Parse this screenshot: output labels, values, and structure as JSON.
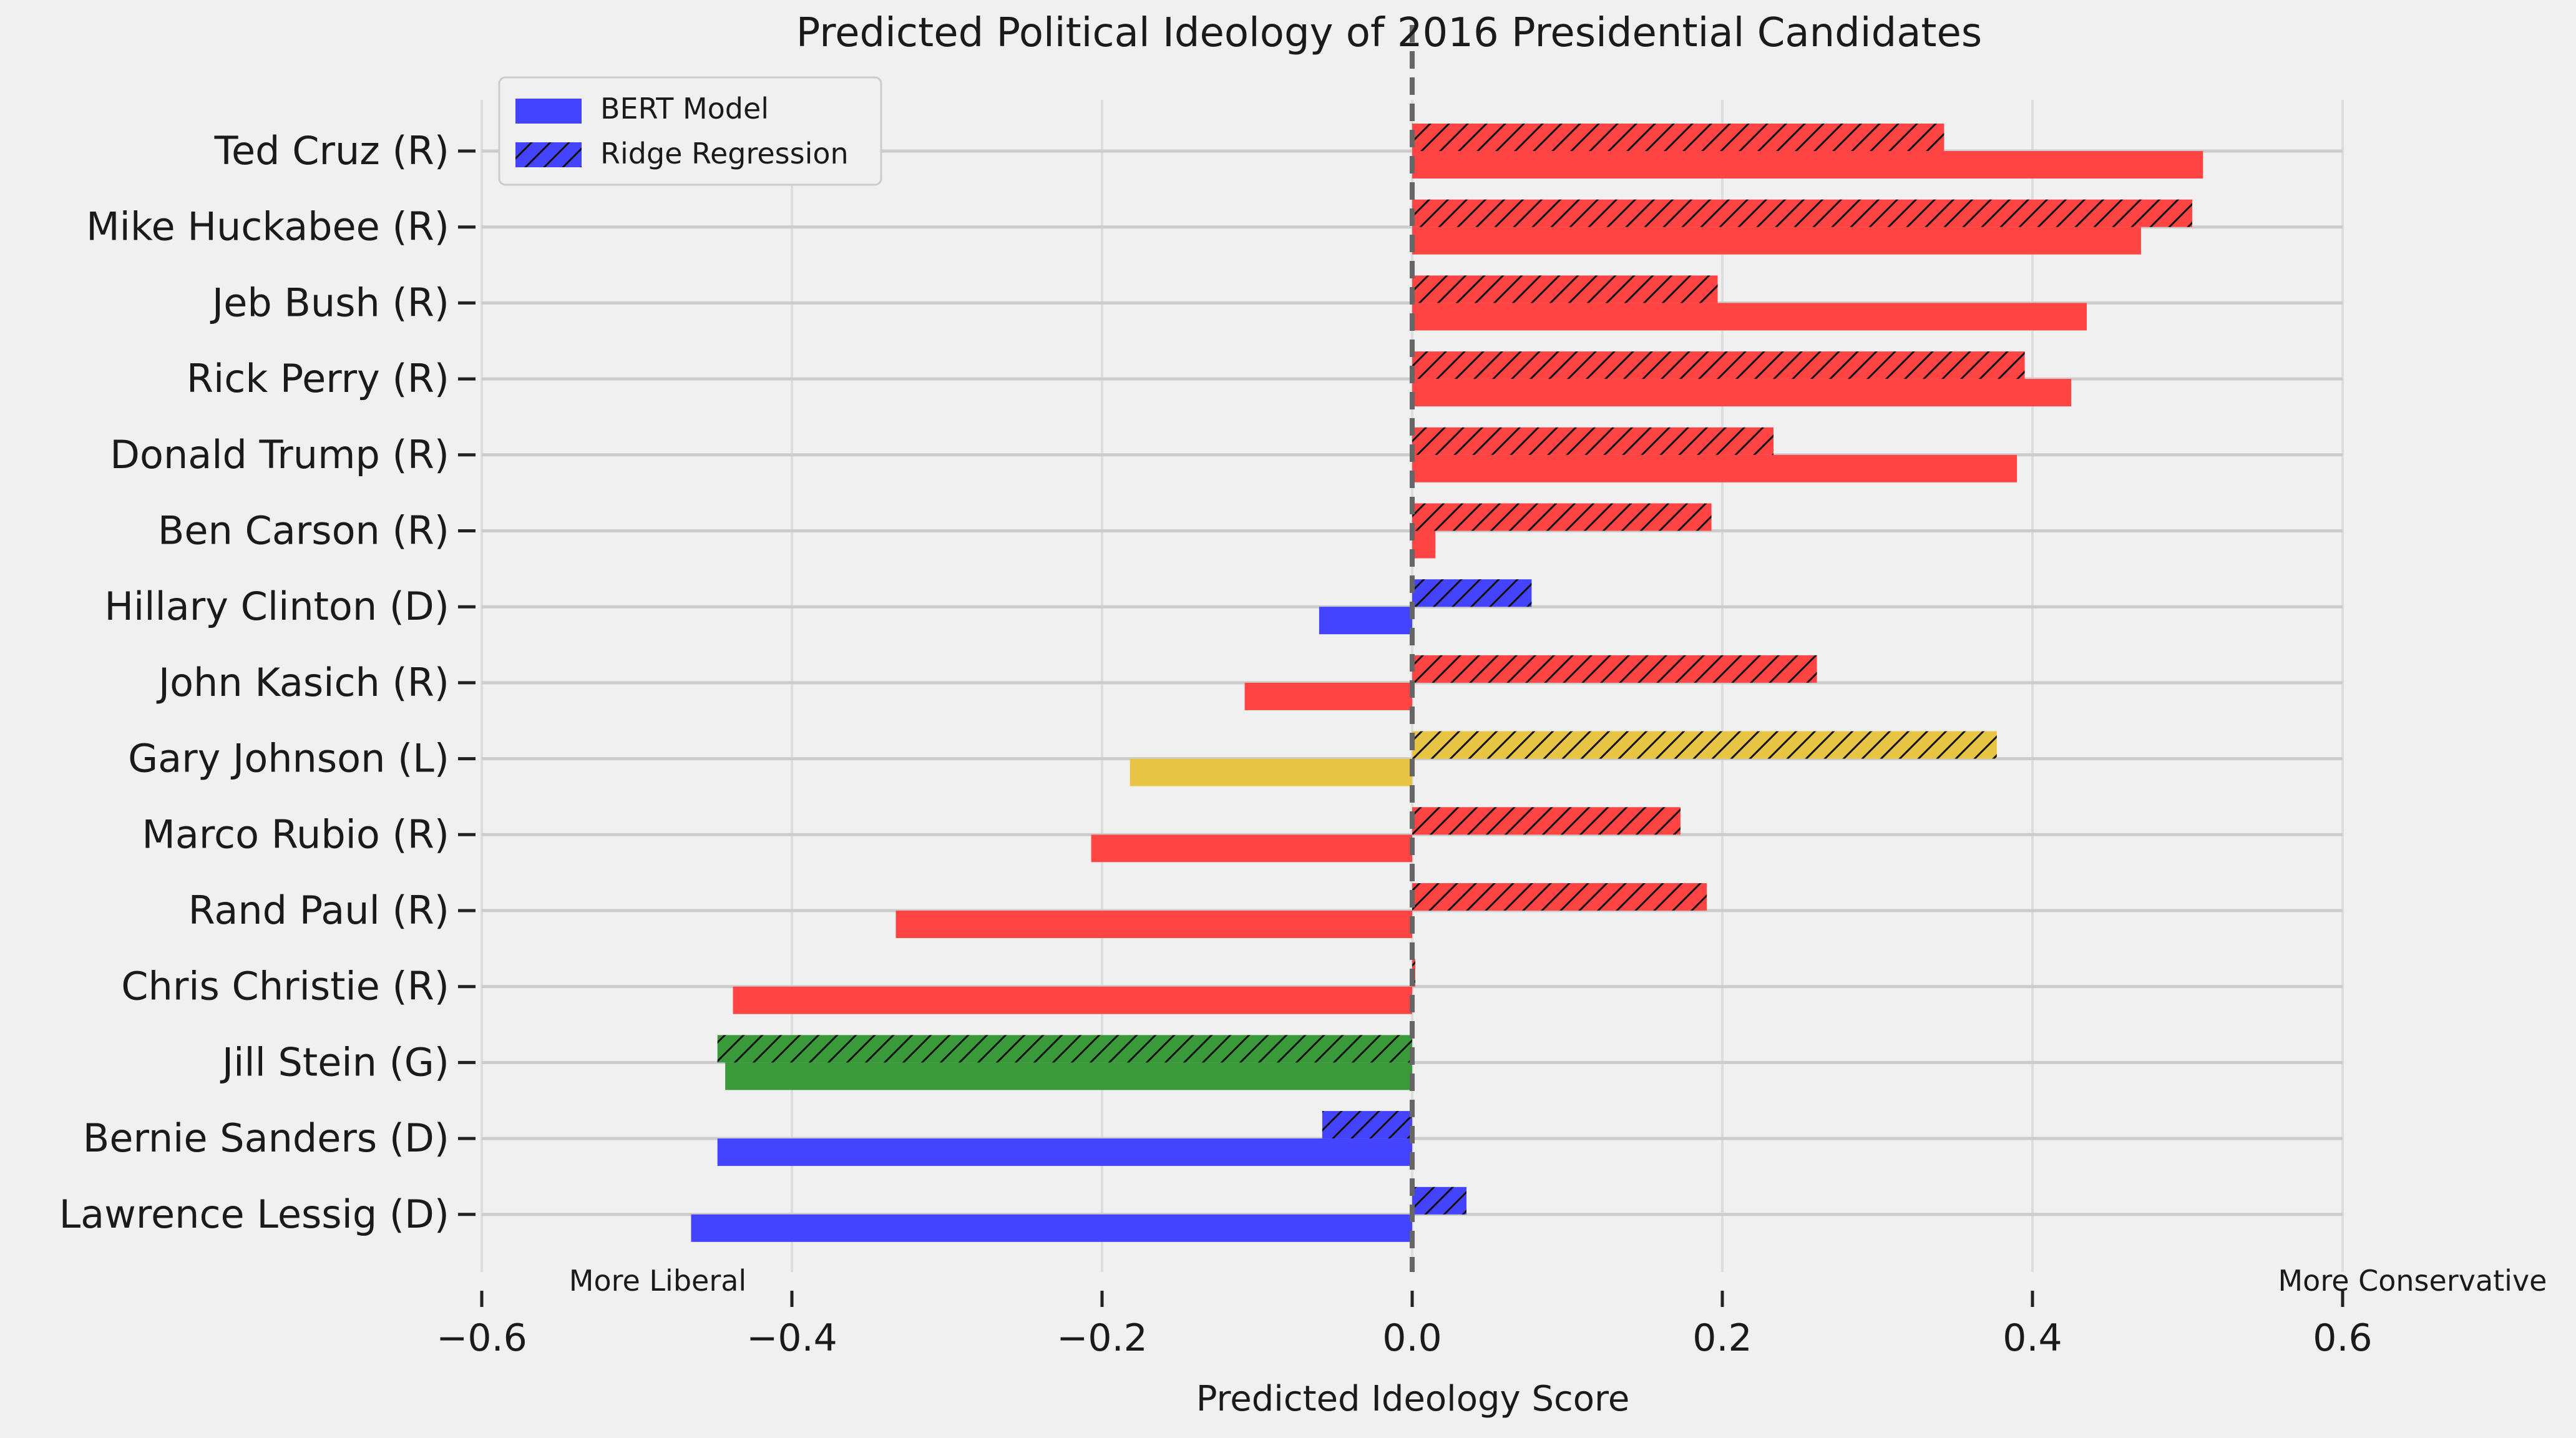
{
  "chart_data": {
    "type": "bar",
    "orientation": "horizontal",
    "title": "Predicted Political Ideology of 2016 Presidential Candidates",
    "xlabel": "Predicted Ideology Score",
    "ylabel": "",
    "xlim": [
      -0.6,
      0.6
    ],
    "xticks": [
      -0.6,
      -0.4,
      -0.2,
      0.0,
      0.2,
      0.4,
      0.6
    ],
    "xtick_labels": [
      "−0.6",
      "−0.4",
      "−0.2",
      "0.0",
      "0.2",
      "0.4",
      "0.6"
    ],
    "grid": true,
    "legend_position": "top-left",
    "annotations": {
      "left": "More Liberal",
      "right": "More Conservative"
    },
    "party_colors": {
      "R": "#ff4444",
      "D": "#4444ff",
      "L": "#e8c444",
      "G": "#3a9a3a"
    },
    "categories": [
      "Ted Cruz (R)",
      "Mike Huckabee (R)",
      "Jeb Bush (R)",
      "Rick Perry (R)",
      "Donald Trump (R)",
      "Ben Carson (R)",
      "Hillary Clinton (D)",
      "John Kasich (R)",
      "Gary Johnson (L)",
      "Marco Rubio (R)",
      "Rand Paul (R)",
      "Chris Christie (R)",
      "Jill Stein (G)",
      "Bernie Sanders (D)",
      "Lawrence Lessig (D)"
    ],
    "parties": [
      "R",
      "R",
      "R",
      "R",
      "R",
      "R",
      "D",
      "R",
      "L",
      "R",
      "R",
      "R",
      "G",
      "D",
      "D"
    ],
    "series": [
      {
        "name": "BERT Model",
        "pattern": "solid",
        "values": [
          0.51,
          0.47,
          0.435,
          0.425,
          0.39,
          0.015,
          -0.06,
          -0.108,
          -0.182,
          -0.207,
          -0.333,
          -0.438,
          -0.443,
          -0.448,
          -0.465
        ]
      },
      {
        "name": "Ridge Regression",
        "pattern": "hatch",
        "values": [
          0.343,
          0.503,
          0.197,
          0.395,
          0.233,
          0.193,
          0.077,
          0.261,
          0.377,
          0.173,
          0.19,
          0.002,
          -0.448,
          -0.058,
          0.035
        ]
      }
    ],
    "legend_swatch_color": "#4444ff"
  }
}
